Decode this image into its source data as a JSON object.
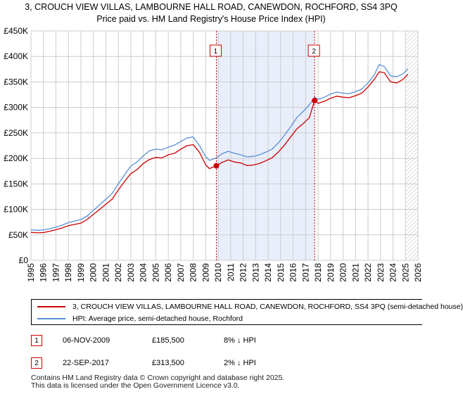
{
  "chart_data": {
    "type": "line",
    "title": "3, CROUCH VIEW VILLAS, LAMBOURNE HALL ROAD, CANEWDON, ROCHFORD, SS4 3PQ",
    "subtitle": "Price paid vs. HM Land Registry's House Price Index (HPI)",
    "xlabel": "",
    "ylabel": "",
    "xlim": [
      1995,
      2026
    ],
    "ylim": [
      0,
      450000
    ],
    "x_ticks": [
      "1995",
      "1996",
      "1997",
      "1998",
      "1999",
      "2000",
      "2001",
      "2002",
      "2003",
      "2004",
      "2005",
      "2006",
      "2007",
      "2008",
      "2009",
      "2010",
      "2011",
      "2012",
      "2013",
      "2014",
      "2015",
      "2016",
      "2017",
      "2018",
      "2019",
      "2020",
      "2021",
      "2022",
      "2023",
      "2024",
      "2025",
      "2026"
    ],
    "y_ticks": [
      "£0",
      "£50K",
      "£100K",
      "£150K",
      "£200K",
      "£250K",
      "£300K",
      "£350K",
      "£400K",
      "£450K"
    ],
    "grid": true,
    "shaded_span": [
      2009.85,
      2017.72
    ],
    "hatched_from": 2025.0,
    "series": [
      {
        "name": "3, CROUCH VIEW VILLAS, LAMBOURNE HALL ROAD, CANEWDON, ROCHFORD, SS4 3PQ (semi-detached house)",
        "color": "#cc0000",
        "x": [
          1995.0,
          1995.5,
          1996.0,
          1996.5,
          1997.0,
          1997.5,
          1998.0,
          1998.5,
          1999.0,
          1999.5,
          2000.0,
          2000.5,
          2001.0,
          2001.5,
          2002.0,
          2002.5,
          2003.0,
          2003.5,
          2004.0,
          2004.5,
          2005.0,
          2005.5,
          2006.0,
          2006.5,
          2007.0,
          2007.5,
          2008.0,
          2008.5,
          2009.0,
          2009.3,
          2009.85,
          2010.3,
          2010.8,
          2011.3,
          2011.8,
          2012.3,
          2012.8,
          2013.3,
          2013.8,
          2014.3,
          2014.8,
          2015.3,
          2015.8,
          2016.3,
          2016.8,
          2017.3,
          2017.72,
          2018.0,
          2018.5,
          2019.0,
          2019.5,
          2020.0,
          2020.5,
          2021.0,
          2021.5,
          2022.0,
          2022.5,
          2022.9,
          2023.3,
          2023.8,
          2024.3,
          2024.8,
          2025.2
        ],
        "y": [
          55000,
          54000,
          54500,
          57000,
          60000,
          63500,
          68000,
          70500,
          73000,
          80000,
          90000,
          100000,
          110000,
          120000,
          138000,
          155000,
          170000,
          178000,
          190000,
          198000,
          202000,
          201000,
          207000,
          210000,
          218000,
          225000,
          227000,
          212000,
          187000,
          180000,
          185500,
          192000,
          197000,
          193000,
          191000,
          186000,
          187000,
          190000,
          195000,
          201000,
          212000,
          226000,
          242000,
          258000,
          268000,
          280000,
          313500,
          308000,
          312000,
          318000,
          322000,
          320000,
          319000,
          323000,
          328000,
          340000,
          355000,
          370000,
          368000,
          350000,
          348000,
          355000,
          365000
        ]
      },
      {
        "name": "HPI: Average price, semi-detached house, Rochford",
        "color": "#5b8fd6",
        "x": [
          1995.0,
          1995.5,
          1996.0,
          1996.5,
          1997.0,
          1997.5,
          1998.0,
          1998.5,
          1999.0,
          1999.5,
          2000.0,
          2000.5,
          2001.0,
          2001.5,
          2002.0,
          2002.5,
          2003.0,
          2003.5,
          2004.0,
          2004.5,
          2005.0,
          2005.5,
          2006.0,
          2006.5,
          2007.0,
          2007.5,
          2008.0,
          2008.5,
          2009.0,
          2009.3,
          2009.85,
          2010.3,
          2010.8,
          2011.3,
          2011.8,
          2012.3,
          2012.8,
          2013.3,
          2013.8,
          2014.3,
          2014.8,
          2015.3,
          2015.8,
          2016.3,
          2016.8,
          2017.3,
          2017.72,
          2018.0,
          2018.5,
          2019.0,
          2019.5,
          2020.0,
          2020.5,
          2021.0,
          2021.5,
          2022.0,
          2022.5,
          2022.9,
          2023.3,
          2023.8,
          2024.3,
          2024.8,
          2025.2
        ],
        "y": [
          60000,
          59000,
          59500,
          62000,
          65000,
          69000,
          74000,
          77000,
          80000,
          87000,
          98000,
          109000,
          120000,
          131000,
          150000,
          168000,
          185000,
          193000,
          205000,
          215000,
          218000,
          217000,
          222000,
          226000,
          233000,
          240000,
          242000,
          225000,
          203000,
          196000,
          201000,
          209000,
          214000,
          210000,
          207000,
          203000,
          204000,
          207000,
          212000,
          218000,
          230000,
          245000,
          262000,
          280000,
          292000,
          305000,
          319500,
          316000,
          320000,
          326000,
          330000,
          328000,
          327000,
          331000,
          336000,
          348000,
          364000,
          384000,
          380000,
          362000,
          360000,
          366000,
          376000
        ]
      }
    ],
    "annotations": [
      {
        "label": "1",
        "x": 2009.85,
        "y": 185500
      },
      {
        "label": "2",
        "x": 2017.72,
        "y": 313500
      }
    ]
  },
  "legend": {
    "items": [
      {
        "label": "3, CROUCH VIEW VILLAS, LAMBOURNE HALL ROAD, CANEWDON, ROCHFORD, SS4 3PQ (semi-detached house)",
        "color": "#cc0000"
      },
      {
        "label": "HPI: Average price, semi-detached house, Rochford",
        "color": "#5b8fd6"
      }
    ]
  },
  "transactions": [
    {
      "num": "1",
      "date": "06-NOV-2009",
      "price": "£185,500",
      "hpi": "8% ↓ HPI"
    },
    {
      "num": "2",
      "date": "22-SEP-2017",
      "price": "£313,500",
      "hpi": "2% ↓ HPI"
    }
  ],
  "footer": {
    "line1": "Contains HM Land Registry data © Crown copyright and database right 2025.",
    "line2": "This data is licensed under the Open Government Licence v3.0."
  }
}
